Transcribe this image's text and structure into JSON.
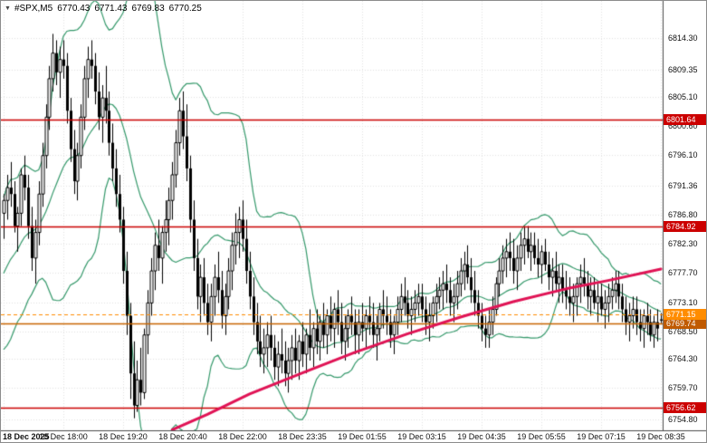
{
  "header": {
    "dropdown_icon": "▼",
    "symbol_period": "#SPX,M5",
    "open": "6770.43",
    "high": "6771.43",
    "low": "6769.83",
    "close": "6770.25"
  },
  "chart_data": {
    "type": "candlestick",
    "symbol": "#SPX",
    "timeframe": "M5",
    "ylim": [
      6753.4,
      6817.6
    ],
    "y_ticks": [
      6814.3,
      6809.35,
      6805.1,
      6800.6,
      6796.1,
      6791.36,
      6786.8,
      6782.3,
      6777.7,
      6773.1,
      6768.5,
      6764.3,
      6759.7,
      6754.8
    ],
    "x_labels": [
      {
        "text": "18 Dec 2025",
        "bar": 0,
        "bold": true
      },
      {
        "text": "18 Dec 18:00",
        "bar": 17,
        "bold": false
      },
      {
        "text": "18 Dec 19:20",
        "bar": 34,
        "bold": false
      },
      {
        "text": "18 Dec 20:40",
        "bar": 51,
        "bold": false
      },
      {
        "text": "18 Dec 22:00",
        "bar": 68,
        "bold": false
      },
      {
        "text": "18 Dec 23:35",
        "bar": 85,
        "bold": false
      },
      {
        "text": "19 Dec 01:55",
        "bar": 102,
        "bold": false
      },
      {
        "text": "19 Dec 03:15",
        "bar": 119,
        "bold": false
      },
      {
        "text": "19 Dec 04:35",
        "bar": 136,
        "bold": false
      },
      {
        "text": "19 Dec 05:55",
        "bar": 153,
        "bold": false
      },
      {
        "text": "19 Dec 07:15",
        "bar": 170,
        "bold": false
      },
      {
        "text": "19 Dec 08:35",
        "bar": 187,
        "bold": false
      }
    ],
    "levels": [
      {
        "price": 6801.64,
        "color": "#cc0000",
        "badge": "#cc0000",
        "style": "solid",
        "width": 1.5
      },
      {
        "price": 6784.92,
        "color": "#cc0000",
        "badge": "#cc0000",
        "style": "solid",
        "width": 1.5
      },
      {
        "price": 6756.62,
        "color": "#cc0000",
        "badge": "#cc0000",
        "style": "solid",
        "width": 1.5
      },
      {
        "price": 6769.74,
        "color": "#c86400",
        "badge": "#c05a00",
        "style": "solid",
        "width": 1.4
      },
      {
        "price": 6771.15,
        "color": "#ff8c00",
        "badge": "#ff8c00",
        "style": "dash",
        "width": 1
      }
    ],
    "indicators": {
      "bollinger": {
        "period": 20,
        "deviation": 2,
        "color": "#35996b",
        "seed_closes": [
          6768,
          6769,
          6770,
          6771,
          6772,
          6773,
          6774,
          6775,
          6776,
          6777,
          6778,
          6779,
          6780,
          6781,
          6782,
          6783,
          6784,
          6785,
          6786
        ]
      },
      "trend_line": {
        "color": "#e01355",
        "width": 3,
        "points": [
          [
            48,
            6753.2
          ],
          [
            58,
            6755.6
          ],
          [
            70,
            6758.8
          ],
          [
            86,
            6762.3
          ],
          [
            100,
            6765.3
          ],
          [
            115,
            6768.2
          ],
          [
            130,
            6770.8
          ],
          [
            145,
            6773.2
          ],
          [
            160,
            6775.2
          ],
          [
            172,
            6776.5
          ],
          [
            187,
            6778.3
          ]
        ]
      }
    },
    "candles_ohlc": [
      [
        6787,
        6790,
        6783,
        6789
      ],
      [
        6789,
        6793,
        6786,
        6791
      ],
      [
        6791,
        6795,
        6788,
        6790
      ],
      [
        6790,
        6792,
        6784,
        6785
      ],
      [
        6785,
        6788,
        6781,
        6787
      ],
      [
        6787,
        6794,
        6785,
        6793
      ],
      [
        6793,
        6796,
        6789,
        6791
      ],
      [
        6791,
        6793,
        6783,
        6785
      ],
      [
        6785,
        6788,
        6778,
        6780
      ],
      [
        6780,
        6786,
        6776,
        6784
      ],
      [
        6784,
        6792,
        6782,
        6790
      ],
      [
        6790,
        6798,
        6788,
        6796
      ],
      [
        6796,
        6804,
        6794,
        6802
      ],
      [
        6802,
        6810,
        6800,
        6808
      ],
      [
        6808,
        6815,
        6806,
        6812
      ],
      [
        6812,
        6814,
        6807,
        6809
      ],
      [
        6809,
        6813,
        6805,
        6811
      ],
      [
        6811,
        6814,
        6808,
        6810
      ],
      [
        6810,
        6812,
        6801,
        6803
      ],
      [
        6803,
        6805,
        6795,
        6797
      ],
      [
        6797,
        6800,
        6790,
        6792
      ],
      [
        6792,
        6798,
        6789,
        6796
      ],
      [
        6796,
        6804,
        6794,
        6802
      ],
      [
        6802,
        6810,
        6800,
        6808
      ],
      [
        6808,
        6813,
        6805,
        6811
      ],
      [
        6811,
        6814,
        6808,
        6810
      ],
      [
        6810,
        6812,
        6804,
        6806
      ],
      [
        6806,
        6809,
        6800,
        6802
      ],
      [
        6802,
        6807,
        6798,
        6805
      ],
      [
        6805,
        6810,
        6801,
        6803
      ],
      [
        6803,
        6806,
        6796,
        6798
      ],
      [
        6798,
        6801,
        6792,
        6794
      ],
      [
        6794,
        6797,
        6788,
        6790
      ],
      [
        6790,
        6793,
        6784,
        6786
      ],
      [
        6786,
        6788,
        6776,
        6778
      ],
      [
        6778,
        6781,
        6768,
        6771
      ],
      [
        6771,
        6773,
        6758,
        6762
      ],
      [
        6762,
        6767,
        6755,
        6757
      ],
      [
        6757,
        6764,
        6756,
        6761
      ],
      [
        6761,
        6766,
        6757,
        6759
      ],
      [
        6759,
        6769,
        6758,
        6768
      ],
      [
        6768,
        6775,
        6765,
        6773
      ],
      [
        6773,
        6780,
        6771,
        6778
      ],
      [
        6778,
        6784,
        6775,
        6782
      ],
      [
        6782,
        6786,
        6778,
        6780
      ],
      [
        6780,
        6785,
        6776,
        6784
      ],
      [
        6784,
        6789,
        6781,
        6786
      ],
      [
        6786,
        6791,
        6782,
        6789
      ],
      [
        6789,
        6795,
        6786,
        6793
      ],
      [
        6793,
        6800,
        6791,
        6798
      ],
      [
        6798,
        6805,
        6796,
        6803
      ],
      [
        6803,
        6806,
        6797,
        6799
      ],
      [
        6799,
        6804,
        6792,
        6794
      ],
      [
        6794,
        6796,
        6784,
        6786
      ],
      [
        6786,
        6789,
        6778,
        6780
      ],
      [
        6780,
        6783,
        6772,
        6774
      ],
      [
        6774,
        6779,
        6770,
        6777
      ],
      [
        6777,
        6780,
        6771,
        6773
      ],
      [
        6773,
        6776,
        6768,
        6770
      ],
      [
        6770,
        6776,
        6767,
        6774
      ],
      [
        6774,
        6779,
        6771,
        6777
      ],
      [
        6777,
        6781,
        6773,
        6775
      ],
      [
        6775,
        6778,
        6769,
        6771
      ],
      [
        6771,
        6776,
        6768,
        6774
      ],
      [
        6774,
        6780,
        6772,
        6778
      ],
      [
        6778,
        6784,
        6775,
        6782
      ],
      [
        6782,
        6787,
        6779,
        6784
      ],
      [
        6784,
        6788,
        6780,
        6786
      ],
      [
        6786,
        6789,
        6781,
        6783
      ],
      [
        6783,
        6786,
        6776,
        6778
      ],
      [
        6778,
        6781,
        6772,
        6774
      ],
      [
        6774,
        6777,
        6768,
        6770
      ],
      [
        6770,
        6773,
        6765,
        6767
      ],
      [
        6767,
        6771,
        6763,
        6765
      ],
      [
        6765,
        6769,
        6762,
        6766
      ],
      [
        6766,
        6770,
        6763,
        6768
      ],
      [
        6768,
        6771,
        6764,
        6766
      ],
      [
        6766,
        6768,
        6761,
        6763
      ],
      [
        6763,
        6767,
        6760,
        6765
      ],
      [
        6765,
        6769,
        6762,
        6764
      ],
      [
        6764,
        6767,
        6760,
        6762
      ],
      [
        6762,
        6766,
        6759,
        6764
      ],
      [
        6764,
        6768,
        6761,
        6766
      ],
      [
        6766,
        6769,
        6762,
        6764
      ],
      [
        6764,
        6768,
        6761,
        6767
      ],
      [
        6767,
        6770,
        6763,
        6765
      ],
      [
        6765,
        6769,
        6762,
        6768
      ],
      [
        6768,
        6772,
        6764,
        6766
      ],
      [
        6766,
        6770,
        6763,
        6769
      ],
      [
        6769,
        6772,
        6765,
        6767
      ],
      [
        6767,
        6771,
        6764,
        6770
      ],
      [
        6770,
        6773,
        6766,
        6768
      ],
      [
        6768,
        6772,
        6765,
        6771
      ],
      [
        6771,
        6774,
        6767,
        6769
      ],
      [
        6769,
        6773,
        6766,
        6772
      ],
      [
        6772,
        6775,
        6768,
        6770
      ],
      [
        6770,
        6773,
        6765,
        6767
      ],
      [
        6767,
        6771,
        6764,
        6769
      ],
      [
        6769,
        6772,
        6766,
        6771
      ],
      [
        6771,
        6774,
        6768,
        6770
      ],
      [
        6770,
        6772,
        6765,
        6768
      ],
      [
        6768,
        6772,
        6765,
        6770
      ],
      [
        6770,
        6773,
        6767,
        6769
      ],
      [
        6769,
        6772,
        6766,
        6771
      ],
      [
        6771,
        6774,
        6768,
        6770
      ],
      [
        6770,
        6773,
        6766,
        6768
      ],
      [
        6768,
        6771,
        6764,
        6769
      ],
      [
        6769,
        6773,
        6767,
        6772
      ],
      [
        6772,
        6775,
        6769,
        6771
      ],
      [
        6771,
        6774,
        6768,
        6770
      ],
      [
        6770,
        6772,
        6766,
        6768
      ],
      [
        6768,
        6771,
        6765,
        6770
      ],
      [
        6770,
        6774,
        6768,
        6772
      ],
      [
        6772,
        6776,
        6770,
        6774
      ],
      [
        6774,
        6777,
        6771,
        6773
      ],
      [
        6773,
        6775,
        6769,
        6771
      ],
      [
        6771,
        6774,
        6768,
        6772
      ],
      [
        6772,
        6775,
        6770,
        6773
      ],
      [
        6773,
        6776,
        6771,
        6774
      ],
      [
        6774,
        6776,
        6770,
        6772
      ],
      [
        6772,
        6774,
        6768,
        6770
      ],
      [
        6770,
        6773,
        6767,
        6771
      ],
      [
        6771,
        6774,
        6769,
        6773
      ],
      [
        6773,
        6776,
        6770,
        6774
      ],
      [
        6774,
        6777,
        6772,
        6775
      ],
      [
        6775,
        6778,
        6772,
        6776
      ],
      [
        6776,
        6779,
        6773,
        6775
      ],
      [
        6775,
        6777,
        6771,
        6773
      ],
      [
        6773,
        6776,
        6770,
        6774
      ],
      [
        6774,
        6778,
        6772,
        6776
      ],
      [
        6776,
        6780,
        6774,
        6778
      ],
      [
        6778,
        6781,
        6775,
        6779
      ],
      [
        6779,
        6782,
        6776,
        6777
      ],
      [
        6777,
        6780,
        6773,
        6775
      ],
      [
        6775,
        6778,
        6771,
        6773
      ],
      [
        6773,
        6775,
        6769,
        6771
      ],
      [
        6771,
        6773,
        6767,
        6769
      ],
      [
        6769,
        6771,
        6766,
        6768
      ],
      [
        6768,
        6772,
        6766,
        6770
      ],
      [
        6770,
        6774,
        6768,
        6772
      ],
      [
        6772,
        6777,
        6771,
        6776
      ],
      [
        6776,
        6780,
        6774,
        6778
      ],
      [
        6778,
        6782,
        6776,
        6780
      ],
      [
        6780,
        6783,
        6777,
        6781
      ],
      [
        6781,
        6784,
        6778,
        6780
      ],
      [
        6780,
        6783,
        6776,
        6778
      ],
      [
        6778,
        6782,
        6775,
        6780
      ],
      [
        6780,
        6784,
        6778,
        6782
      ],
      [
        6782,
        6785,
        6779,
        6783
      ],
      [
        6783,
        6785,
        6780,
        6781
      ],
      [
        6781,
        6784,
        6778,
        6782
      ],
      [
        6782,
        6784,
        6779,
        6780
      ],
      [
        6780,
        6783,
        6777,
        6779
      ],
      [
        6779,
        6782,
        6776,
        6781
      ],
      [
        6781,
        6783,
        6778,
        6779
      ],
      [
        6779,
        6781,
        6775,
        6777
      ],
      [
        6777,
        6780,
        6774,
        6778
      ],
      [
        6778,
        6781,
        6775,
        6776
      ],
      [
        6776,
        6779,
        6773,
        6777
      ],
      [
        6777,
        6779,
        6773,
        6775
      ],
      [
        6775,
        6778,
        6772,
        6774
      ],
      [
        6774,
        6777,
        6771,
        6773
      ],
      [
        6773,
        6776,
        6770,
        6774
      ],
      [
        6774,
        6777,
        6771,
        6776
      ],
      [
        6776,
        6779,
        6773,
        6777
      ],
      [
        6777,
        6780,
        6774,
        6776
      ],
      [
        6776,
        6778,
        6772,
        6774
      ],
      [
        6774,
        6777,
        6771,
        6775
      ],
      [
        6775,
        6777,
        6772,
        6773
      ],
      [
        6773,
        6776,
        6770,
        6774
      ],
      [
        6774,
        6776,
        6771,
        6772
      ],
      [
        6772,
        6775,
        6769,
        6773
      ],
      [
        6773,
        6776,
        6770,
        6774
      ],
      [
        6774,
        6777,
        6772,
        6775
      ],
      [
        6775,
        6778,
        6773,
        6776
      ],
      [
        6776,
        6778,
        6772,
        6774
      ],
      [
        6774,
        6776,
        6770,
        6772
      ],
      [
        6772,
        6774,
        6768,
        6770
      ],
      [
        6770,
        6773,
        6767,
        6771
      ],
      [
        6771,
        6774,
        6769,
        6772
      ],
      [
        6772,
        6774,
        6768,
        6770
      ],
      [
        6770,
        6772,
        6767,
        6769
      ],
      [
        6769,
        6772,
        6766,
        6771
      ],
      [
        6771,
        6773,
        6768,
        6770
      ],
      [
        6770,
        6772,
        6767,
        6768
      ],
      [
        6768,
        6771,
        6766,
        6770
      ],
      [
        6770,
        6772,
        6767,
        6769
      ],
      [
        6770.43,
        6771.43,
        6769.83,
        6770.25
      ]
    ],
    "style": {
      "grid_color": "#e2e2e2",
      "bull_color": "#ffffff",
      "bear_color": "#000000",
      "wick_color": "#000000",
      "axis_text_color": "#111111",
      "frame_color": "#4a4a4a"
    }
  }
}
